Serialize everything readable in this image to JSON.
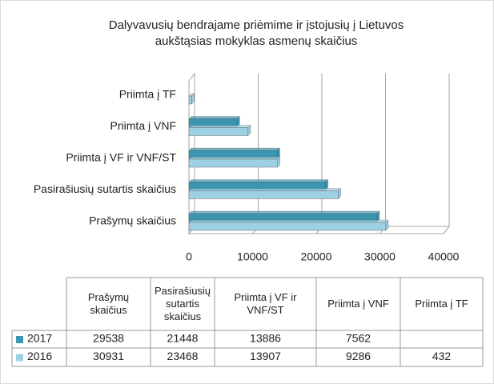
{
  "chart_data": {
    "type": "bar",
    "orientation": "horizontal",
    "title": "Dalyvavusių bendrajame priėmime ir įstojusių į Lietuvos aukštąsias mokyklas asmenų skaičius",
    "categories": [
      "Prašymų skaičius",
      "Pasirašiusių sutartis skaičius",
      "Priimta į VF ir VNF/ST",
      "Priimta į VNF",
      "Priimta į TF"
    ],
    "series": [
      {
        "name": "2017",
        "color": "#3a95b1",
        "values": [
          29538,
          21448,
          13886,
          7562,
          null
        ]
      },
      {
        "name": "2016",
        "color": "#9dd0e3",
        "values": [
          30931,
          23468,
          13907,
          9286,
          432
        ]
      }
    ],
    "xlim": [
      0,
      40000
    ],
    "xticks": [
      0,
      10000,
      20000,
      30000,
      40000
    ],
    "grid": true
  }
}
